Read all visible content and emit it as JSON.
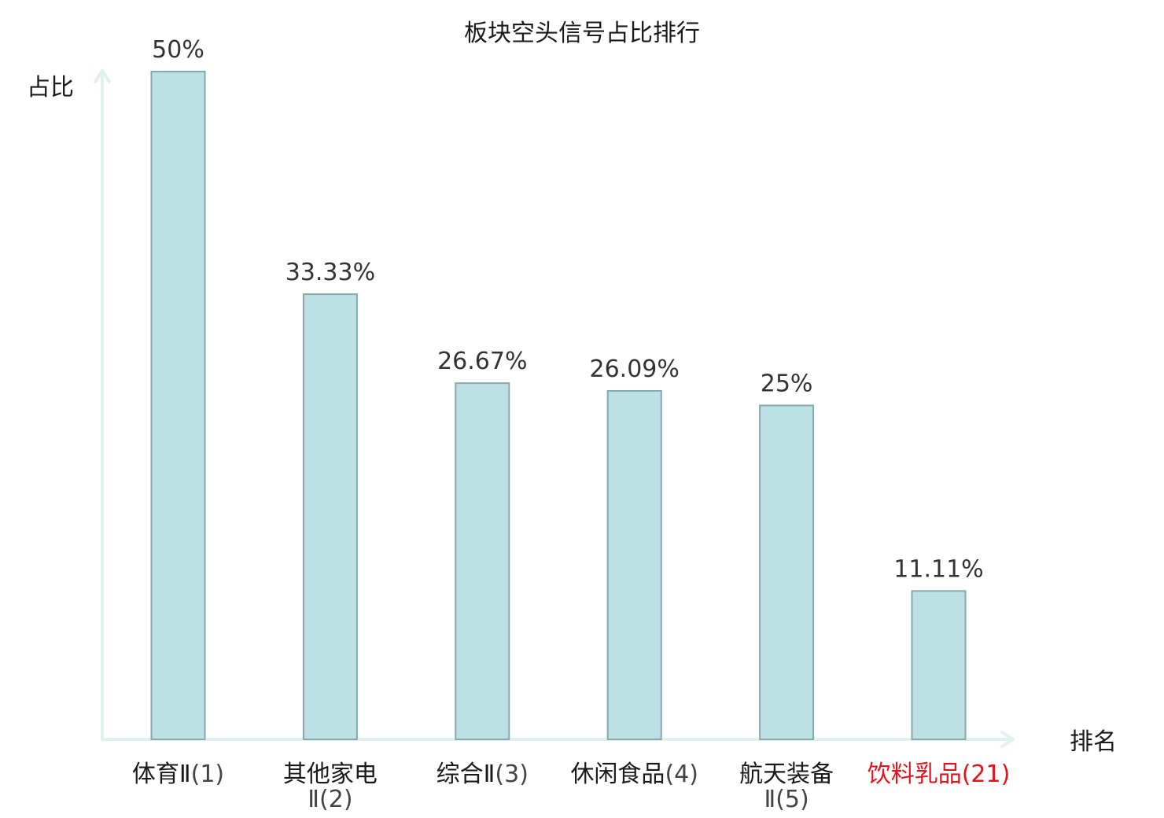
{
  "chart_data": {
    "type": "bar",
    "title": "板块空头信号占比排行",
    "ylabel": "占比",
    "xlabel": "排名",
    "ylim": [
      0,
      50
    ],
    "categories": [
      {
        "name": "体育Ⅱ",
        "rank": "(1)",
        "value": 50,
        "label": "50%",
        "highlight": false
      },
      {
        "name": "其他家电",
        "rank": "Ⅱ(2)",
        "value": 33.33,
        "label": "33.33%",
        "highlight": false
      },
      {
        "name": "综合Ⅱ",
        "rank": "(3)",
        "value": 26.67,
        "label": "26.67%",
        "highlight": false
      },
      {
        "name": "休闲食品",
        "rank": "(4)",
        "value": 26.09,
        "label": "26.09%",
        "highlight": false
      },
      {
        "name": "航天装备",
        "rank": "Ⅱ(5)",
        "value": 25,
        "label": "25%",
        "highlight": false
      },
      {
        "name": "饮料乳品",
        "rank": "(21)",
        "value": 11.11,
        "label": "11.11%",
        "highlight": true
      }
    ],
    "colors": {
      "bar_fill": "#bce0e3",
      "bar_stroke": "#86a9ad",
      "axis": "#dff2ef",
      "highlight_text": "#e0141e"
    },
    "grid": false,
    "legend": "none"
  }
}
